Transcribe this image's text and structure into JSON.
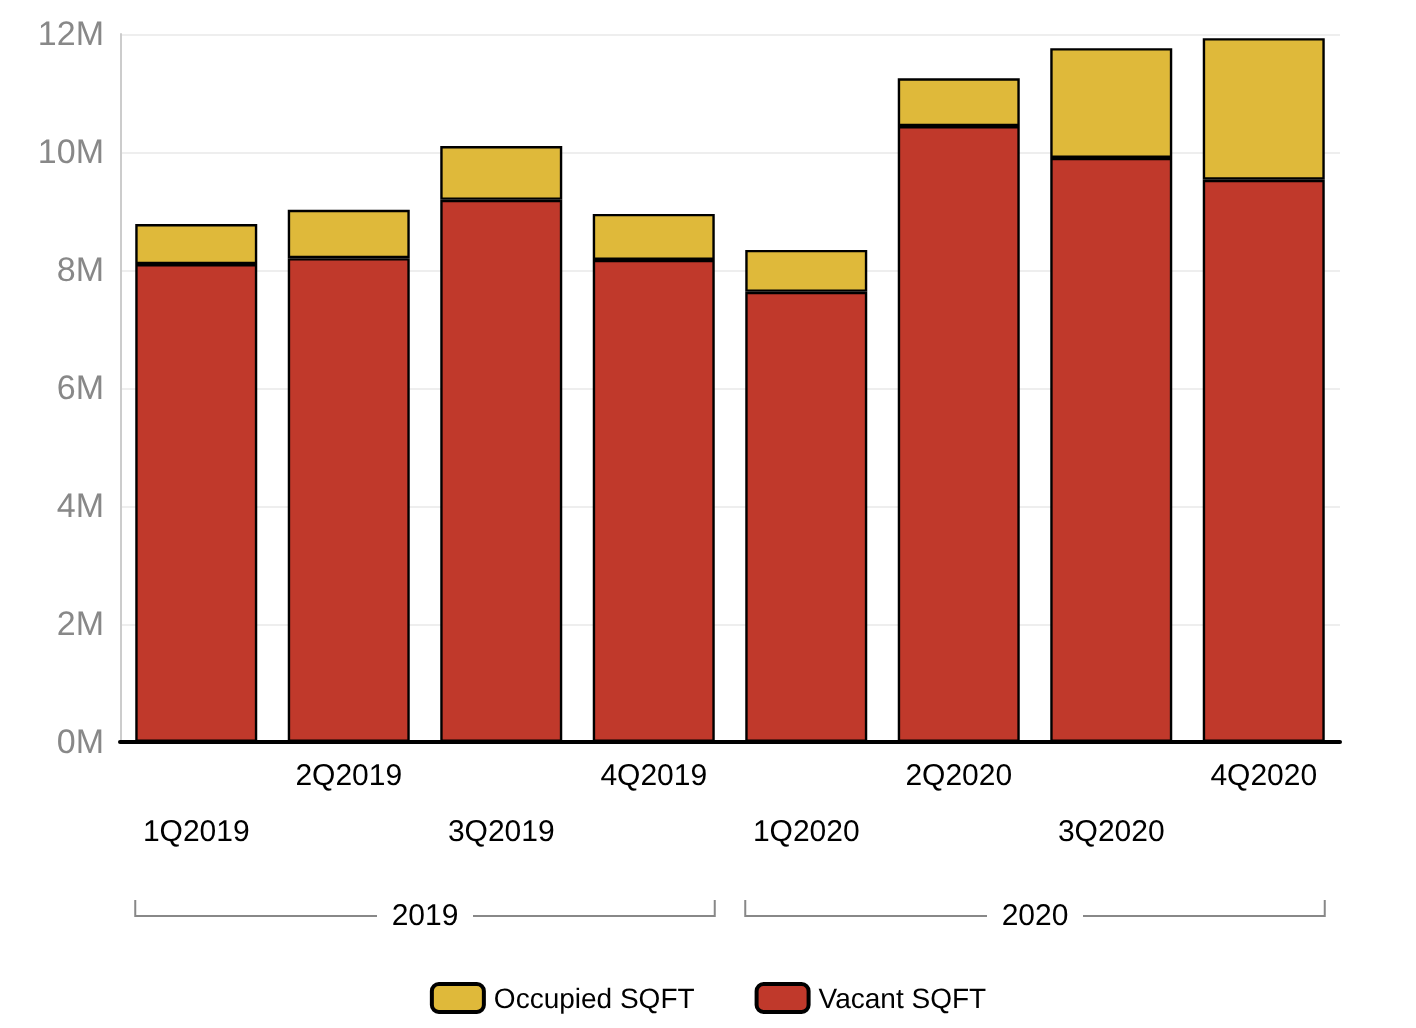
{
  "chart_data": {
    "type": "bar",
    "stacked": true,
    "categories": [
      "1Q2019",
      "2Q2019",
      "3Q2019",
      "4Q2019",
      "1Q2020",
      "2Q2020",
      "3Q2020",
      "4Q2020"
    ],
    "series": [
      {
        "name": "Vacant SQFT",
        "color": "#c0392b",
        "values": [
          8.1,
          8.2,
          9.19,
          8.17,
          7.63,
          10.44,
          9.9,
          9.53
        ]
      },
      {
        "name": "Occupied SQFT",
        "color": "#dfb93a",
        "values": [
          0.68,
          0.82,
          0.91,
          0.78,
          0.71,
          0.81,
          1.86,
          2.4
        ]
      }
    ],
    "ylim": [
      0,
      12
    ],
    "yticks": [
      {
        "value": 0,
        "label": "0M"
      },
      {
        "value": 2,
        "label": "2M"
      },
      {
        "value": 4,
        "label": "4M"
      },
      {
        "value": 6,
        "label": "6M"
      },
      {
        "value": 8,
        "label": "8M"
      },
      {
        "value": 10,
        "label": "10M"
      },
      {
        "value": 12,
        "label": "12M"
      }
    ],
    "grid": "y",
    "legend": "bottom",
    "annotations": [
      "2019",
      "2020"
    ]
  }
}
